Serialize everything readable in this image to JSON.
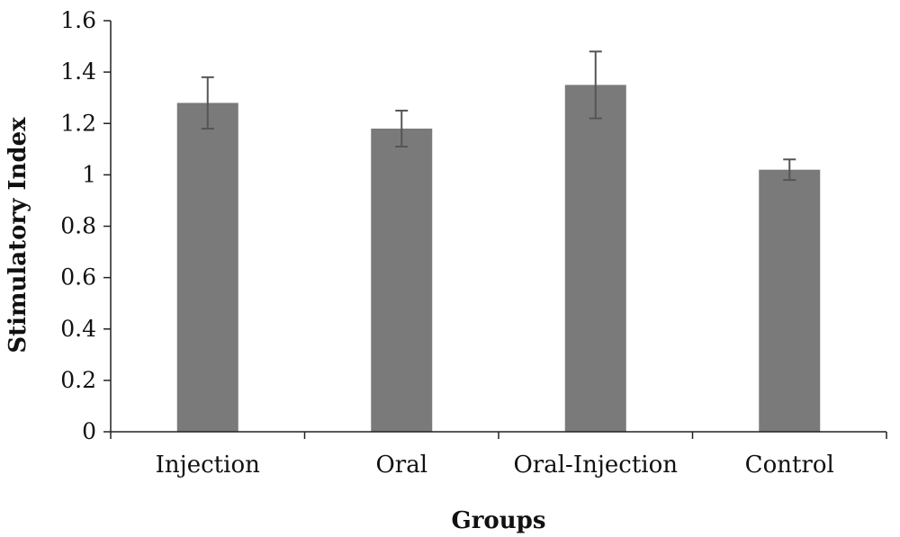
{
  "chart_data": {
    "type": "bar",
    "categories": [
      "Injection",
      "Oral",
      "Oral-Injection",
      "Control"
    ],
    "values": [
      1.28,
      1.18,
      1.35,
      1.02
    ],
    "error": [
      0.1,
      0.07,
      0.13,
      0.04
    ],
    "xlabel": "Groups",
    "ylabel": "Stimulatory Index",
    "ylim": [
      0,
      1.6
    ],
    "yticks": [
      0,
      0.2,
      0.4,
      0.6,
      0.8,
      1,
      1.2,
      1.4,
      1.6
    ],
    "ytick_labels": [
      "0",
      "0.2",
      "0.4",
      "0.6",
      "0.8",
      "1",
      "1.2",
      "1.4",
      "1.6"
    ],
    "grid": false,
    "legend": "none",
    "bar_color": "#7a7a7a",
    "errorbar_color": "#555555",
    "axis_color": "#222222"
  }
}
